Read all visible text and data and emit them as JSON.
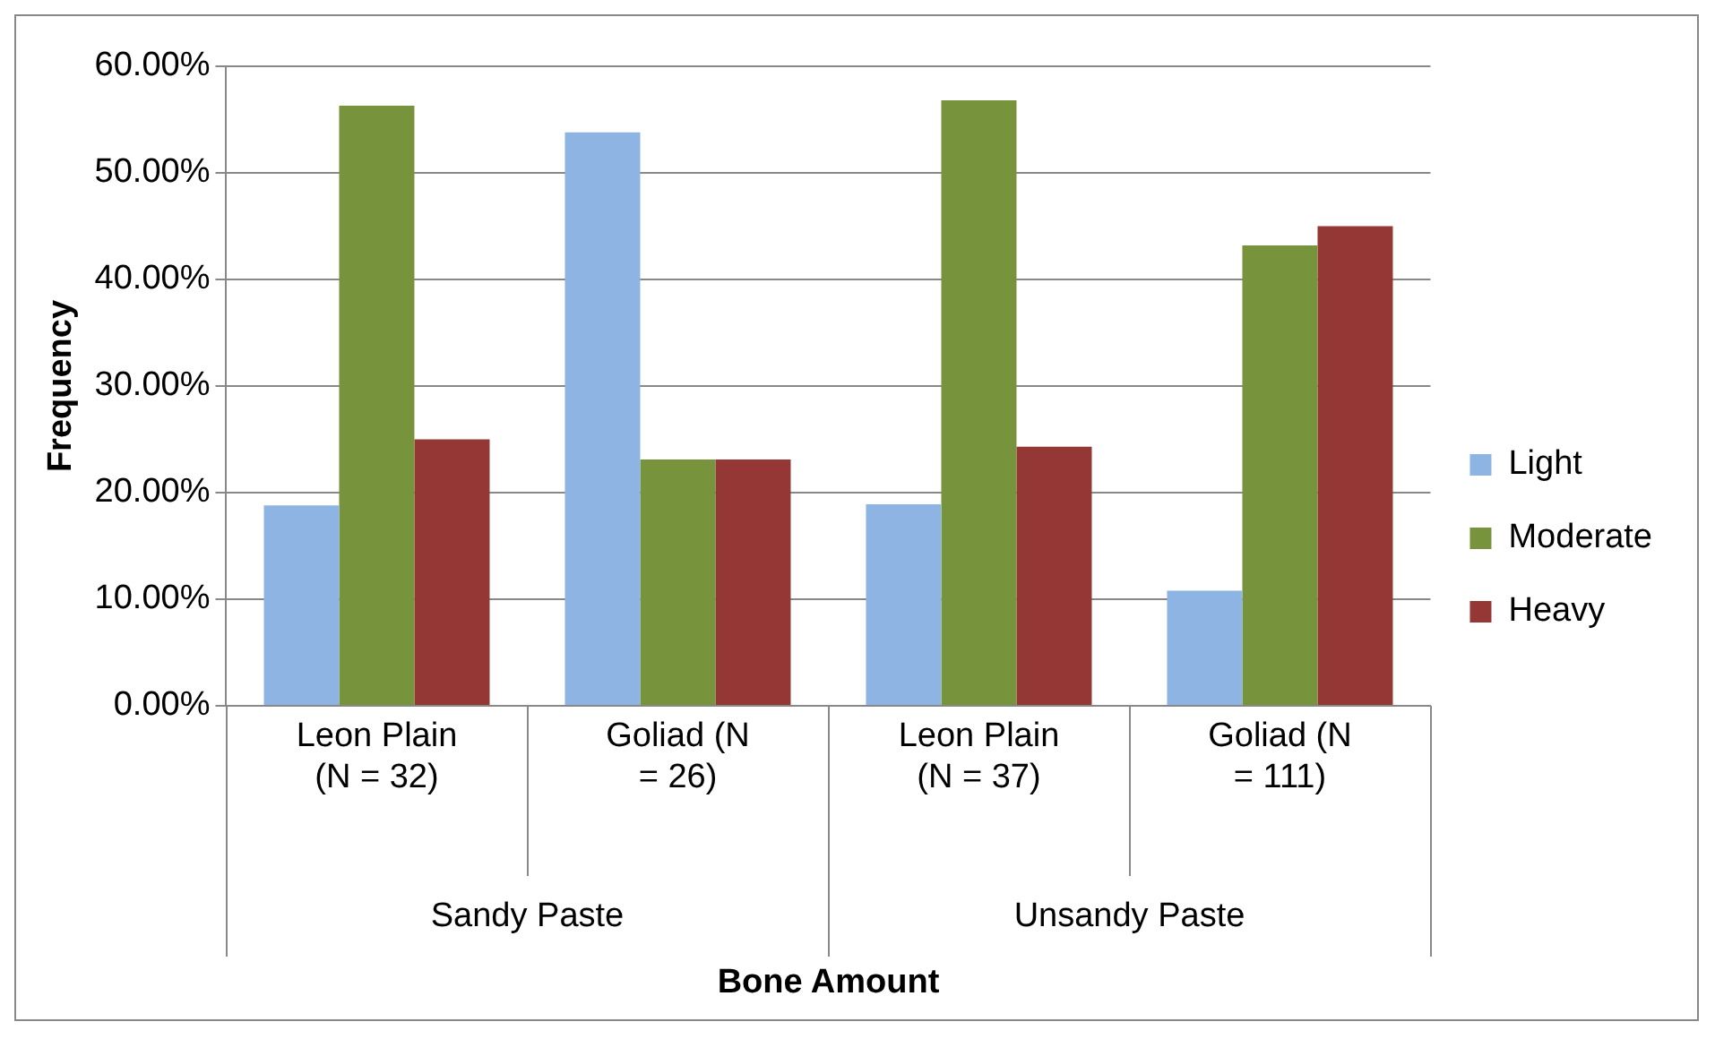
{
  "chart_data": {
    "type": "bar",
    "xlabel": "Bone Amount",
    "ylabel": "Frequency",
    "categories": [
      "Leon Plain (N = 32)",
      "Goliad (N = 26)",
      "Leon Plain (N = 37)",
      "Goliad (N = 111)"
    ],
    "annotations": [
      "Sandy Paste",
      "Unsandy Paste"
    ],
    "series": [
      {
        "name": "Light",
        "color": "#8eb4e3",
        "values": [
          18.8,
          53.8,
          18.9,
          10.8
        ]
      },
      {
        "name": "Moderate",
        "color": "#77933c",
        "values": [
          56.3,
          23.1,
          56.8,
          43.2
        ]
      },
      {
        "name": "Heavy",
        "color": "#953735",
        "values": [
          25.0,
          23.1,
          24.3,
          45.0
        ]
      }
    ],
    "ylim": [
      0,
      60
    ],
    "yticks": [
      {
        "value": 0,
        "label": "0.00%"
      },
      {
        "value": 10,
        "label": "10.00%"
      },
      {
        "value": 20,
        "label": "20.00%"
      },
      {
        "value": 30,
        "label": "30.00%"
      },
      {
        "value": 40,
        "label": "40.00%"
      },
      {
        "value": 50,
        "label": "50.00%"
      },
      {
        "value": 60,
        "label": "60.00%"
      }
    ],
    "grid": true,
    "legend": "right"
  }
}
